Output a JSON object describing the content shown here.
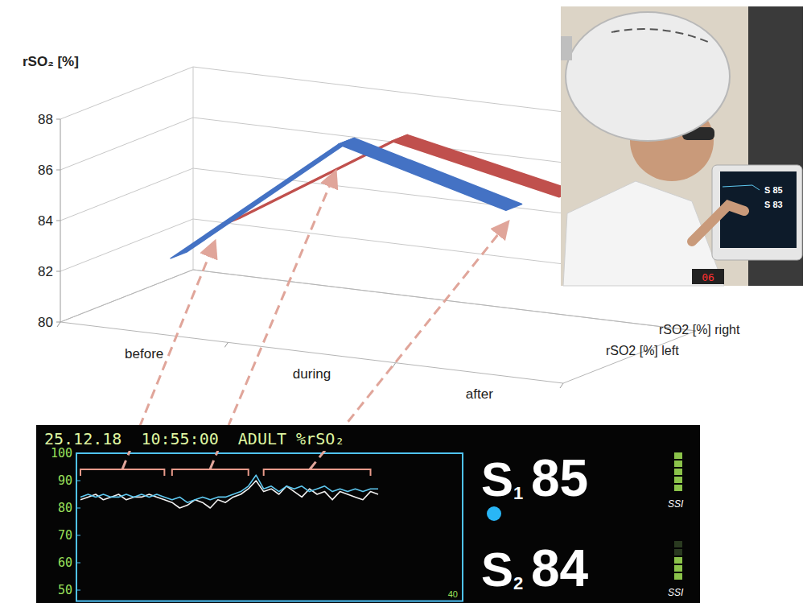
{
  "chart_data": {
    "type": "line",
    "y_label": "rSO₂ [%]",
    "categories": [
      "before",
      "during",
      "after"
    ],
    "series": [
      {
        "name": "rSO2 [%] left",
        "color": "#4472c4",
        "values": [
          82.5,
          87.8,
          86
        ]
      },
      {
        "name": "rSO2 [%] right",
        "color": "#c0504d",
        "values": [
          83,
          87.1,
          85.7
        ]
      }
    ],
    "ylim": [
      80,
      88
    ],
    "yticks": [
      80,
      82,
      84,
      86,
      88
    ],
    "grid": true,
    "legend": "right"
  },
  "monitor": {
    "header": "25.12.18  10:55:00  ADULT %rSO₂",
    "ylim": [
      46,
      100
    ],
    "yticks": [
      50,
      60,
      70,
      80,
      90,
      100
    ],
    "scale_label": "40",
    "traces": [
      {
        "color": "#5ec8f0",
        "values": [
          84,
          85,
          84,
          85,
          84,
          84,
          85,
          84,
          85,
          84,
          85,
          84,
          83,
          84,
          82,
          83,
          84,
          83,
          84,
          84,
          85,
          86,
          88,
          92,
          87,
          88,
          86,
          88,
          87,
          88,
          86,
          87,
          88,
          86,
          87,
          86,
          87,
          86,
          87,
          87
        ]
      },
      {
        "color": "#f0f0f0",
        "values": [
          83,
          84,
          85,
          83,
          84,
          85,
          83,
          84,
          84,
          85,
          84,
          83,
          82,
          80,
          81,
          83,
          82,
          80,
          83,
          82,
          84,
          85,
          87,
          90,
          86,
          87,
          85,
          88,
          86,
          84,
          87,
          85,
          86,
          83,
          86,
          85,
          84,
          83,
          86,
          85
        ]
      }
    ],
    "readings": [
      {
        "label": "S",
        "subscript": "1",
        "value": 85
      },
      {
        "label": "S",
        "subscript": "2",
        "value": 84
      }
    ],
    "ssi": "SSI"
  },
  "photo": {
    "screen": [
      "S 85",
      "S 83"
    ],
    "led": "06"
  }
}
